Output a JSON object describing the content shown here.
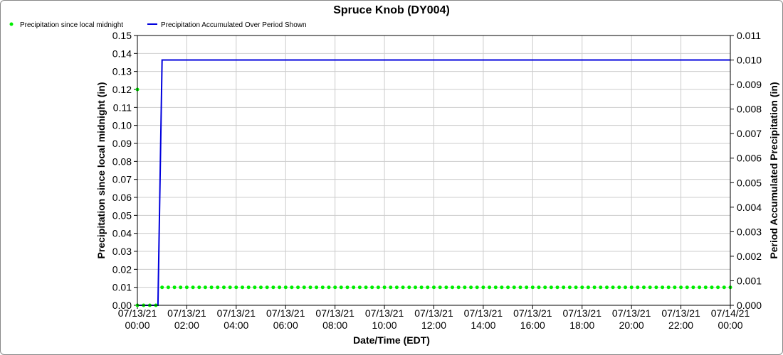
{
  "chart_data": {
    "type": "line",
    "title": "Spruce Knob (DY004)",
    "xlabel": "Date/Time (EDT)",
    "ylabel_left": "Precipitation since local midnight (in)",
    "ylabel_right": "Period Accumulated Precipitation (in)",
    "ylim_left": [
      0,
      0.15
    ],
    "ylim_right": [
      0,
      0.011
    ],
    "grid": true,
    "legend_position": "top-left",
    "x_ticks": [
      {
        "date": "07/13/21",
        "time": "00:00"
      },
      {
        "date": "07/13/21",
        "time": "02:00"
      },
      {
        "date": "07/13/21",
        "time": "04:00"
      },
      {
        "date": "07/13/21",
        "time": "06:00"
      },
      {
        "date": "07/13/21",
        "time": "08:00"
      },
      {
        "date": "07/13/21",
        "time": "10:00"
      },
      {
        "date": "07/13/21",
        "time": "12:00"
      },
      {
        "date": "07/13/21",
        "time": "14:00"
      },
      {
        "date": "07/13/21",
        "time": "16:00"
      },
      {
        "date": "07/13/21",
        "time": "18:00"
      },
      {
        "date": "07/13/21",
        "time": "20:00"
      },
      {
        "date": "07/13/21",
        "time": "22:00"
      },
      {
        "date": "07/14/21",
        "time": "00:00"
      }
    ],
    "y_ticks_left": [
      "0.00",
      "0.01",
      "0.02",
      "0.03",
      "0.04",
      "0.05",
      "0.06",
      "0.07",
      "0.08",
      "0.09",
      "0.10",
      "0.11",
      "0.12",
      "0.13",
      "0.14",
      "0.15"
    ],
    "y_ticks_right": [
      "0.000",
      "0.001",
      "0.002",
      "0.003",
      "0.004",
      "0.005",
      "0.006",
      "0.007",
      "0.008",
      "0.009",
      "0.010",
      "0.011"
    ],
    "series": [
      {
        "name": "Precipitation since local midnight",
        "axis": "left",
        "style": "points",
        "color": "#00ee00",
        "points": [
          {
            "x": "07/13/21 00:00",
            "y": 0.12
          },
          {
            "x": "07/13/21 00:00",
            "y": 0.0
          },
          {
            "x": "07/13/21 00:15",
            "y": 0.0
          },
          {
            "x": "07/13/21 00:30",
            "y": 0.0
          },
          {
            "x": "07/13/21 00:45",
            "y": 0.0
          },
          {
            "x": "07/13/21 01:00",
            "y": 0.01
          },
          {
            "x": "07/13/21 01:15",
            "y": 0.01
          },
          {
            "x": "07/13/21 01:30",
            "y": 0.01
          },
          {
            "x": "07/13/21 01:45",
            "y": 0.01
          },
          {
            "x": "07/13/21 02:00",
            "y": 0.01
          },
          {
            "x": "07/13/21 02:15",
            "y": 0.01
          },
          {
            "x": "07/13/21 02:30",
            "y": 0.01
          },
          {
            "x": "07/13/21 02:45",
            "y": 0.01
          },
          {
            "x": "07/13/21 03:00",
            "y": 0.01
          },
          {
            "x": "07/13/21 03:15",
            "y": 0.01
          },
          {
            "x": "07/13/21 03:30",
            "y": 0.01
          },
          {
            "x": "07/13/21 03:45",
            "y": 0.01
          },
          {
            "x": "07/13/21 04:00",
            "y": 0.01
          },
          {
            "x": "07/13/21 04:15",
            "y": 0.01
          },
          {
            "x": "07/13/21 04:30",
            "y": 0.01
          },
          {
            "x": "07/13/21 04:45",
            "y": 0.01
          },
          {
            "x": "07/13/21 05:00",
            "y": 0.01
          },
          {
            "x": "07/13/21 05:15",
            "y": 0.01
          },
          {
            "x": "07/13/21 05:30",
            "y": 0.01
          },
          {
            "x": "07/13/21 05:45",
            "y": 0.01
          },
          {
            "x": "07/13/21 06:00",
            "y": 0.01
          },
          {
            "x": "07/13/21 06:15",
            "y": 0.01
          },
          {
            "x": "07/13/21 06:30",
            "y": 0.01
          },
          {
            "x": "07/13/21 06:45",
            "y": 0.01
          },
          {
            "x": "07/13/21 07:00",
            "y": 0.01
          },
          {
            "x": "07/13/21 07:15",
            "y": 0.01
          },
          {
            "x": "07/13/21 07:30",
            "y": 0.01
          },
          {
            "x": "07/13/21 07:45",
            "y": 0.01
          },
          {
            "x": "07/13/21 08:00",
            "y": 0.01
          },
          {
            "x": "07/13/21 08:15",
            "y": 0.01
          },
          {
            "x": "07/13/21 08:30",
            "y": 0.01
          },
          {
            "x": "07/13/21 08:45",
            "y": 0.01
          },
          {
            "x": "07/13/21 09:00",
            "y": 0.01
          },
          {
            "x": "07/13/21 09:15",
            "y": 0.01
          },
          {
            "x": "07/13/21 09:30",
            "y": 0.01
          },
          {
            "x": "07/13/21 09:45",
            "y": 0.01
          },
          {
            "x": "07/13/21 10:00",
            "y": 0.01
          },
          {
            "x": "07/13/21 10:15",
            "y": 0.01
          },
          {
            "x": "07/13/21 10:30",
            "y": 0.01
          },
          {
            "x": "07/13/21 10:45",
            "y": 0.01
          },
          {
            "x": "07/13/21 11:00",
            "y": 0.01
          },
          {
            "x": "07/13/21 11:15",
            "y": 0.01
          },
          {
            "x": "07/13/21 11:30",
            "y": 0.01
          },
          {
            "x": "07/13/21 11:45",
            "y": 0.01
          },
          {
            "x": "07/13/21 12:00",
            "y": 0.01
          },
          {
            "x": "07/13/21 12:15",
            "y": 0.01
          },
          {
            "x": "07/13/21 12:30",
            "y": 0.01
          },
          {
            "x": "07/13/21 12:45",
            "y": 0.01
          },
          {
            "x": "07/13/21 13:00",
            "y": 0.01
          },
          {
            "x": "07/13/21 13:15",
            "y": 0.01
          },
          {
            "x": "07/13/21 13:30",
            "y": 0.01
          },
          {
            "x": "07/13/21 13:45",
            "y": 0.01
          },
          {
            "x": "07/13/21 14:00",
            "y": 0.01
          },
          {
            "x": "07/13/21 14:15",
            "y": 0.01
          },
          {
            "x": "07/13/21 14:30",
            "y": 0.01
          },
          {
            "x": "07/13/21 14:45",
            "y": 0.01
          },
          {
            "x": "07/13/21 15:00",
            "y": 0.01
          },
          {
            "x": "07/13/21 15:15",
            "y": 0.01
          },
          {
            "x": "07/13/21 15:30",
            "y": 0.01
          },
          {
            "x": "07/13/21 15:45",
            "y": 0.01
          },
          {
            "x": "07/13/21 16:00",
            "y": 0.01
          },
          {
            "x": "07/13/21 16:15",
            "y": 0.01
          },
          {
            "x": "07/13/21 16:30",
            "y": 0.01
          },
          {
            "x": "07/13/21 16:45",
            "y": 0.01
          },
          {
            "x": "07/13/21 17:00",
            "y": 0.01
          },
          {
            "x": "07/13/21 17:15",
            "y": 0.01
          },
          {
            "x": "07/13/21 17:30",
            "y": 0.01
          },
          {
            "x": "07/13/21 17:45",
            "y": 0.01
          },
          {
            "x": "07/13/21 18:00",
            "y": 0.01
          },
          {
            "x": "07/13/21 18:15",
            "y": 0.01
          },
          {
            "x": "07/13/21 18:30",
            "y": 0.01
          },
          {
            "x": "07/13/21 18:45",
            "y": 0.01
          },
          {
            "x": "07/13/21 19:00",
            "y": 0.01
          },
          {
            "x": "07/13/21 19:15",
            "y": 0.01
          },
          {
            "x": "07/13/21 19:30",
            "y": 0.01
          },
          {
            "x": "07/13/21 19:45",
            "y": 0.01
          },
          {
            "x": "07/13/21 20:00",
            "y": 0.01
          },
          {
            "x": "07/13/21 20:15",
            "y": 0.01
          },
          {
            "x": "07/13/21 20:30",
            "y": 0.01
          },
          {
            "x": "07/13/21 20:45",
            "y": 0.01
          },
          {
            "x": "07/13/21 21:00",
            "y": 0.01
          },
          {
            "x": "07/13/21 21:15",
            "y": 0.01
          },
          {
            "x": "07/13/21 21:30",
            "y": 0.01
          },
          {
            "x": "07/13/21 21:45",
            "y": 0.01
          },
          {
            "x": "07/13/21 22:00",
            "y": 0.01
          },
          {
            "x": "07/13/21 22:15",
            "y": 0.01
          },
          {
            "x": "07/13/21 22:30",
            "y": 0.01
          },
          {
            "x": "07/13/21 22:45",
            "y": 0.01
          },
          {
            "x": "07/13/21 23:00",
            "y": 0.01
          },
          {
            "x": "07/13/21 23:15",
            "y": 0.01
          },
          {
            "x": "07/13/21 23:30",
            "y": 0.01
          },
          {
            "x": "07/13/21 23:45",
            "y": 0.01
          },
          {
            "x": "07/14/21 00:00",
            "y": 0.01
          }
        ]
      },
      {
        "name": "Precipitation Accumulated Over Period Shown",
        "axis": "right",
        "style": "line",
        "color": "#0000dd",
        "points": [
          {
            "x": "07/13/21 00:00",
            "y": 0.0
          },
          {
            "x": "07/13/21 00:50",
            "y": 0.0
          },
          {
            "x": "07/13/21 01:00",
            "y": 0.01
          },
          {
            "x": "07/14/21 00:00",
            "y": 0.01
          }
        ]
      }
    ]
  }
}
